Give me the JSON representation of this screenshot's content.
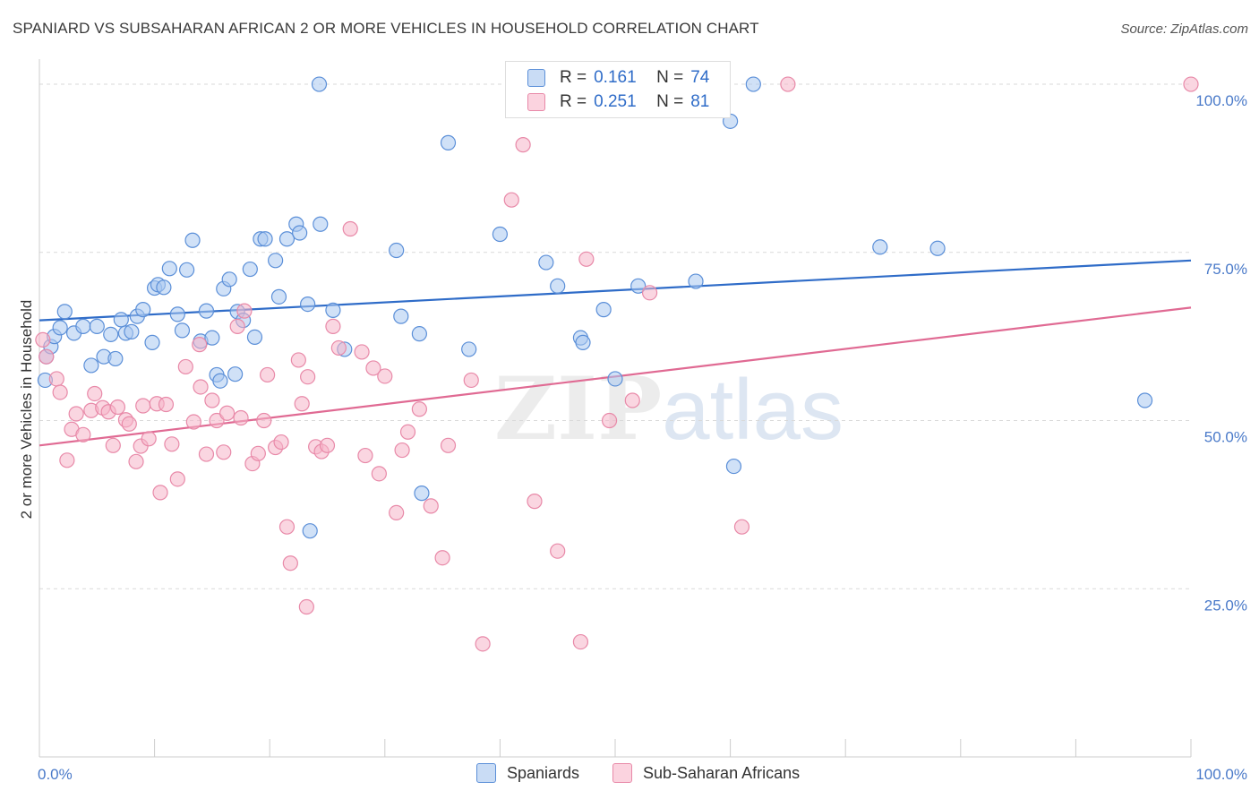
{
  "header": {
    "title": "SPANIARD VS SUBSAHARAN AFRICAN 2 OR MORE VEHICLES IN HOUSEHOLD CORRELATION CHART",
    "source": "Source: ZipAtlas.com"
  },
  "legend": {
    "rows": [
      {
        "r_label": "R =",
        "r_value": "0.161",
        "n_label": "N =",
        "n_value": "74",
        "color": "#a9c8f0"
      },
      {
        "r_label": "R =",
        "r_value": "0.251",
        "n_label": "N =",
        "n_value": "81",
        "color": "#f6b5c8"
      }
    ]
  },
  "bottom_legend": {
    "items": [
      {
        "label": "Spaniards",
        "color": "#a9c8f0"
      },
      {
        "label": "Sub-Saharan Africans",
        "color": "#f6b5c8"
      }
    ]
  },
  "watermark": {
    "zip": "ZIP",
    "atlas": "atlas"
  },
  "colors": {
    "blue_fill": "#a9c8f0",
    "blue_stroke": "#5b8fd8",
    "blue_line": "#2f6cc8",
    "pink_fill": "#f6b5c8",
    "pink_stroke": "#e889a8",
    "pink_line": "#e06a93",
    "grid": "#d9d9d9",
    "tick_text": "#4a7ac9"
  },
  "chart_data": {
    "type": "scatter",
    "title": "SPANIARD VS SUBSAHARAN AFRICAN 2 OR MORE VEHICLES IN HOUSEHOLD CORRELATION CHART",
    "xlabel": "",
    "ylabel": "2 or more Vehicles in Household",
    "xlim": [
      0,
      100
    ],
    "ylim": [
      0,
      104
    ],
    "x_tick_labels": [
      "0.0%",
      "100.0%"
    ],
    "y_ticks": [
      25,
      50,
      75,
      100
    ],
    "y_tick_labels": [
      "25.0%",
      "50.0%",
      "75.0%",
      "100.0%"
    ],
    "grid": true,
    "legend_position": "top-center",
    "series": [
      {
        "name": "Spaniards",
        "R": 0.161,
        "N": 74,
        "trend": {
          "x": [
            0,
            100
          ],
          "y": [
            64.9,
            73.8
          ]
        },
        "points": [
          [
            0.5,
            56.0
          ],
          [
            0.6,
            59.5
          ],
          [
            1.0,
            61.0
          ],
          [
            1.3,
            62.5
          ],
          [
            1.8,
            63.8
          ],
          [
            2.2,
            66.2
          ],
          [
            3.0,
            63.0
          ],
          [
            3.8,
            64.0
          ],
          [
            4.5,
            58.2
          ],
          [
            5.0,
            64.0
          ],
          [
            5.6,
            59.5
          ],
          [
            6.2,
            62.8
          ],
          [
            6.6,
            59.2
          ],
          [
            7.1,
            65.0
          ],
          [
            7.5,
            63.0
          ],
          [
            8.0,
            63.2
          ],
          [
            8.5,
            65.5
          ],
          [
            9.0,
            66.5
          ],
          [
            9.8,
            61.6
          ],
          [
            10.0,
            69.7
          ],
          [
            10.3,
            70.2
          ],
          [
            10.8,
            69.8
          ],
          [
            11.3,
            72.6
          ],
          [
            12.0,
            65.8
          ],
          [
            12.4,
            63.4
          ],
          [
            12.8,
            72.4
          ],
          [
            13.3,
            76.8
          ],
          [
            14.0,
            61.8
          ],
          [
            14.5,
            66.3
          ],
          [
            15.0,
            62.3
          ],
          [
            15.4,
            56.8
          ],
          [
            15.7,
            55.9
          ],
          [
            16.0,
            69.6
          ],
          [
            16.5,
            71.0
          ],
          [
            17.0,
            56.9
          ],
          [
            17.2,
            66.2
          ],
          [
            17.7,
            64.9
          ],
          [
            18.3,
            72.5
          ],
          [
            18.7,
            62.4
          ],
          [
            19.2,
            77.0
          ],
          [
            19.6,
            77.0
          ],
          [
            20.5,
            73.8
          ],
          [
            20.8,
            68.4
          ],
          [
            21.5,
            77.0
          ],
          [
            22.3,
            79.2
          ],
          [
            22.6,
            77.9
          ],
          [
            23.3,
            67.3
          ],
          [
            23.5,
            33.6
          ],
          [
            24.3,
            100.0
          ],
          [
            24.4,
            79.2
          ],
          [
            25.5,
            66.4
          ],
          [
            26.5,
            60.6
          ],
          [
            31.0,
            75.3
          ],
          [
            31.4,
            65.5
          ],
          [
            33.0,
            62.9
          ],
          [
            33.2,
            39.2
          ],
          [
            35.5,
            91.3
          ],
          [
            37.3,
            60.6
          ],
          [
            40.0,
            77.7
          ],
          [
            44.0,
            73.5
          ],
          [
            45.0,
            70.0
          ],
          [
            47.0,
            62.3
          ],
          [
            47.2,
            61.6
          ],
          [
            49.0,
            66.5
          ],
          [
            50.0,
            56.2
          ],
          [
            52.0,
            70.0
          ],
          [
            57.0,
            70.7
          ],
          [
            60.0,
            94.5
          ],
          [
            60.3,
            43.2
          ],
          [
            73.0,
            75.8
          ],
          [
            78.0,
            75.6
          ],
          [
            96.0,
            53.0
          ],
          [
            62.0,
            100.0
          ],
          [
            50.0,
            100.0
          ]
        ]
      },
      {
        "name": "Sub-Saharan Africans",
        "R": 0.251,
        "N": 81,
        "trend": {
          "x": [
            0,
            100
          ],
          "y": [
            46.3,
            66.8
          ]
        },
        "points": [
          [
            0.3,
            62.0
          ],
          [
            0.6,
            59.5
          ],
          [
            1.5,
            56.2
          ],
          [
            1.8,
            54.2
          ],
          [
            2.4,
            44.1
          ],
          [
            2.8,
            48.7
          ],
          [
            3.2,
            51.0
          ],
          [
            3.8,
            47.9
          ],
          [
            4.5,
            51.5
          ],
          [
            4.8,
            54.0
          ],
          [
            5.5,
            51.9
          ],
          [
            6.0,
            51.3
          ],
          [
            6.4,
            46.3
          ],
          [
            6.8,
            52.0
          ],
          [
            7.5,
            50.1
          ],
          [
            7.8,
            49.5
          ],
          [
            8.4,
            43.9
          ],
          [
            8.8,
            46.2
          ],
          [
            9.0,
            52.2
          ],
          [
            9.5,
            47.3
          ],
          [
            10.2,
            52.5
          ],
          [
            10.5,
            39.3
          ],
          [
            11.0,
            52.4
          ],
          [
            11.5,
            46.5
          ],
          [
            12.0,
            41.3
          ],
          [
            12.7,
            58.0
          ],
          [
            13.4,
            49.8
          ],
          [
            13.9,
            61.3
          ],
          [
            14.0,
            55.0
          ],
          [
            14.5,
            45.0
          ],
          [
            15.0,
            53.0
          ],
          [
            15.4,
            50.0
          ],
          [
            16.0,
            45.3
          ],
          [
            16.3,
            51.1
          ],
          [
            17.2,
            64.0
          ],
          [
            17.5,
            50.4
          ],
          [
            17.8,
            66.3
          ],
          [
            18.5,
            43.6
          ],
          [
            19.0,
            45.1
          ],
          [
            19.5,
            50.0
          ],
          [
            19.8,
            56.8
          ],
          [
            20.5,
            46.0
          ],
          [
            21.0,
            46.8
          ],
          [
            21.5,
            34.2
          ],
          [
            21.8,
            28.8
          ],
          [
            22.5,
            59.0
          ],
          [
            22.8,
            52.5
          ],
          [
            23.2,
            22.3
          ],
          [
            23.3,
            56.5
          ],
          [
            24.0,
            46.1
          ],
          [
            24.5,
            45.4
          ],
          [
            25.0,
            46.3
          ],
          [
            25.5,
            64.0
          ],
          [
            26.0,
            60.8
          ],
          [
            27.0,
            78.5
          ],
          [
            28.0,
            60.2
          ],
          [
            28.3,
            44.8
          ],
          [
            29.0,
            57.8
          ],
          [
            29.5,
            42.1
          ],
          [
            30.0,
            56.6
          ],
          [
            31.0,
            36.3
          ],
          [
            31.5,
            45.6
          ],
          [
            32.0,
            48.3
          ],
          [
            33.0,
            51.7
          ],
          [
            34.0,
            37.3
          ],
          [
            35.0,
            29.6
          ],
          [
            35.5,
            46.3
          ],
          [
            37.5,
            56.0
          ],
          [
            38.5,
            16.8
          ],
          [
            42.0,
            91.0
          ],
          [
            43.0,
            38.0
          ],
          [
            45.0,
            30.6
          ],
          [
            47.0,
            17.1
          ],
          [
            49.5,
            50.0
          ],
          [
            51.5,
            53.0
          ],
          [
            53.0,
            69.0
          ],
          [
            61.0,
            34.2
          ],
          [
            65.0,
            100.0
          ],
          [
            100.0,
            100.0
          ],
          [
            41.0,
            82.8
          ],
          [
            47.5,
            74.0
          ]
        ]
      }
    ]
  }
}
